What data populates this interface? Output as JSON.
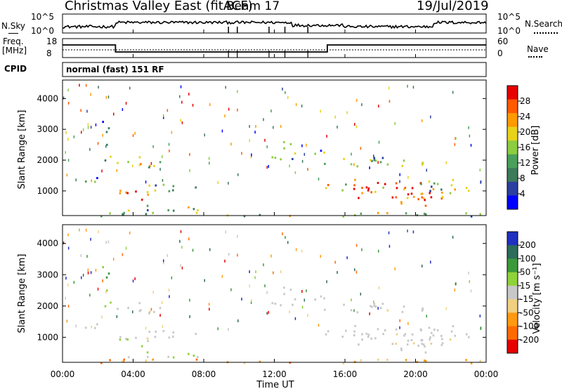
{
  "header": {
    "title": "Christmas Valley East (fitACF)",
    "beam": "Beam 17",
    "date": "19/Jul/2019"
  },
  "top_panel": {
    "left_label": "N.Sky",
    "right_label": "N.Search",
    "left_ticks": [
      "10^5",
      "10^0"
    ],
    "right_ticks": [
      "10^5",
      "10^0"
    ]
  },
  "freq_panel": {
    "left_label_1": "Freq.",
    "left_label_2": "[MHz]",
    "left_ticks": [
      "18",
      "8"
    ],
    "right_label": "Nave",
    "right_ticks": [
      "60",
      "0"
    ]
  },
  "cpid": {
    "label": "CPID",
    "value": "normal (fast) 151 RF"
  },
  "colors": {
    "power_scale": [
      "#0000ff",
      "#2a3fa0",
      "#3c7a5a",
      "#49a05a",
      "#8ccc40",
      "#e8d21a",
      "#ff9a00",
      "#ff5a00",
      "#e60000"
    ],
    "velocity_scale": [
      "#2030c0",
      "#2d6b5a",
      "#3a9a3a",
      "#8fd23a",
      "#c8c8c8",
      "#f0d080",
      "#ff9a10",
      "#ff6a00",
      "#e60000"
    ]
  },
  "chart_data": [
    {
      "type": "heatmap",
      "name": "power",
      "ylabel": "Slant Range [km]",
      "yticks": [
        1000,
        2000,
        3000,
        4000
      ],
      "ylim": [
        200,
        4600
      ],
      "xlim_hours": [
        0,
        24
      ],
      "colorbar_label": "Power [dB]",
      "colorbar_ticks": [
        4,
        8,
        12,
        16,
        20,
        24,
        28
      ],
      "colorbar_range": [
        0,
        30
      ]
    },
    {
      "type": "heatmap",
      "name": "velocity",
      "ylabel": "Slant Range [km]",
      "yticks": [
        1000,
        2000,
        3000,
        4000
      ],
      "ylim": [
        200,
        4600
      ],
      "xlim_hours": [
        0,
        24
      ],
      "colorbar_label": "Velocity [m s⁻¹]",
      "colorbar_ticks": [
        200,
        100,
        50,
        15,
        -15,
        -50,
        -100,
        -200
      ]
    }
  ],
  "x_axis": {
    "ticks": [
      "00:00",
      "04:00",
      "08:00",
      "12:00",
      "16:00",
      "20:00",
      "00:00"
    ],
    "label": "Time UT"
  }
}
